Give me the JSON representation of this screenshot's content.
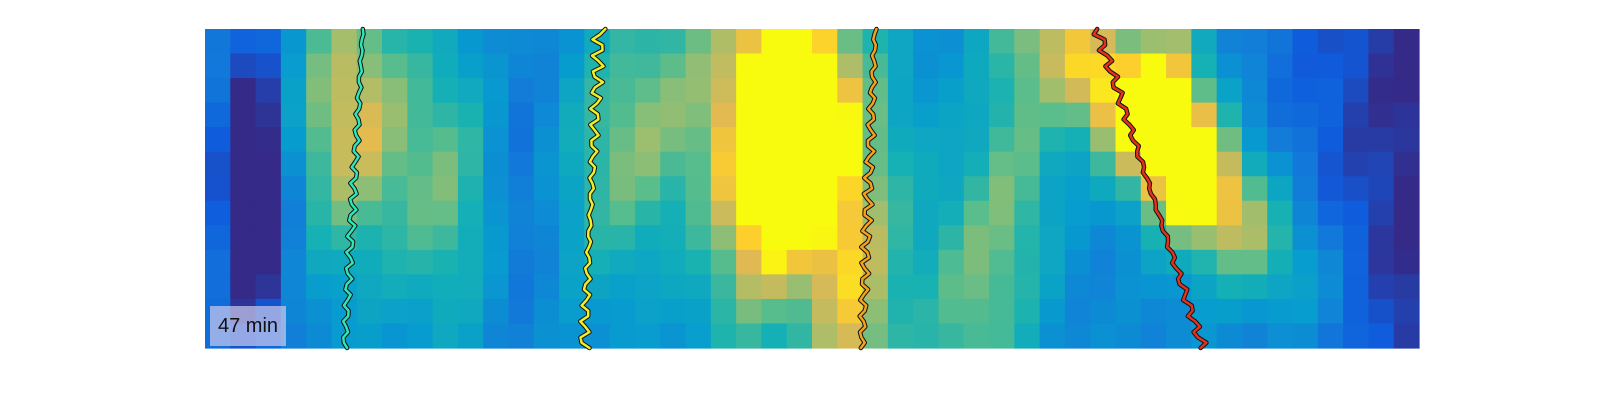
{
  "chart_data": {
    "type": "heatmap",
    "colormap": "parula",
    "grid": false,
    "time_label": "47 min",
    "time_label_position": "bottom-left",
    "columns": 48,
    "rows": 13,
    "intensity_peaks": [
      {
        "center": 0.04,
        "width": 0.02,
        "amp": -0.6,
        "drift": 0.0,
        "peak_row": 6
      },
      {
        "center": 0.12,
        "width": 0.035,
        "amp": 0.55,
        "drift": 0.0,
        "peak_row": 3
      },
      {
        "center": 0.2,
        "width": 0.03,
        "amp": 0.35,
        "drift": 0.0,
        "peak_row": 6
      },
      {
        "center": 0.26,
        "width": 0.02,
        "amp": -0.15,
        "drift": 0.0,
        "peak_row": 6
      },
      {
        "center": 0.36,
        "width": 0.04,
        "amp": 0.4,
        "drift": -0.03,
        "peak_row": 4
      },
      {
        "center": 0.48,
        "width": 0.03,
        "amp": 0.3,
        "drift": -0.04,
        "peak_row": 8
      },
      {
        "center": 0.48,
        "width": 0.05,
        "amp": 0.85,
        "drift": 0.01,
        "peak_row": 3
      },
      {
        "center": 0.535,
        "width": 0.03,
        "amp": 0.45,
        "drift": 0.0,
        "peak_row": 12
      },
      {
        "center": 0.67,
        "width": 0.025,
        "amp": 0.3,
        "drift": 0.0,
        "peak_row": 5
      },
      {
        "center": 0.72,
        "width": 0.045,
        "amp": 0.8,
        "drift": 0.2,
        "peak_row": 4
      },
      {
        "center": 0.63,
        "width": 0.03,
        "amp": 0.35,
        "drift": 0.0,
        "peak_row": 11
      },
      {
        "center": 0.8,
        "width": 0.02,
        "amp": 0.3,
        "drift": 0.0,
        "peak_row": 1
      }
    ],
    "tracks": [
      {
        "name": "",
        "color": "#2ee6b8",
        "x_top": 0.13,
        "x_bottom": 0.115,
        "wiggle": 0.002
      },
      {
        "name": "",
        "color": "#f0ef2a",
        "x_top": 0.325,
        "x_bottom": 0.312,
        "wiggle": 0.0035
      },
      {
        "name": "",
        "color": "#f5a21c",
        "x_top": 0.552,
        "x_bottom": 0.541,
        "wiggle": 0.0025
      },
      {
        "name": "",
        "color": "#e3321c",
        "x_top": 0.735,
        "x_bottom": 0.822,
        "wiggle": 0.003
      }
    ]
  }
}
